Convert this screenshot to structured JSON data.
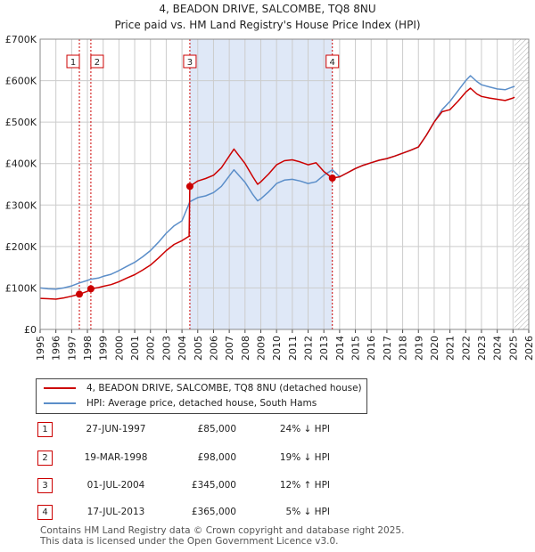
{
  "title_line1": "4, BEADON DRIVE, SALCOMBE, TQ8 8NU",
  "title_line2": "Price paid vs. HM Land Registry's House Price Index (HPI)",
  "colors": {
    "property": "#cc0000",
    "hpi": "#5b8ec9",
    "shade": "#dfe8f7",
    "grid": "#cccccc",
    "marker_border": "#cc0000"
  },
  "legend": {
    "property_label": "4, BEADON DRIVE, SALCOMBE, TQ8 8NU (detached house)",
    "hpi_label": "HPI: Average price, detached house, South Hams"
  },
  "transactions": [
    {
      "num": "1",
      "date": "27-JUN-1997",
      "price": "£85,000",
      "hpi": "24% ↓ HPI"
    },
    {
      "num": "2",
      "date": "19-MAR-1998",
      "price": "£98,000",
      "hpi": "19% ↓ HPI"
    },
    {
      "num": "3",
      "date": "01-JUL-2004",
      "price": "£345,000",
      "hpi": "12% ↑ HPI"
    },
    {
      "num": "4",
      "date": "17-JUL-2013",
      "price": "£365,000",
      "hpi": "5% ↓ HPI"
    }
  ],
  "footer": {
    "line1": "Contains HM Land Registry data © Crown copyright and database right 2025.",
    "line2": "This data is licensed under the Open Government Licence v3.0."
  },
  "chart_data": {
    "type": "line",
    "x_range": [
      1995,
      2026
    ],
    "ylim": [
      0,
      700000
    ],
    "y_ticks": [
      {
        "value": 0,
        "label": "£0"
      },
      {
        "value": 100000,
        "label": "£100K"
      },
      {
        "value": 200000,
        "label": "£200K"
      },
      {
        "value": 300000,
        "label": "£300K"
      },
      {
        "value": 400000,
        "label": "£400K"
      },
      {
        "value": 500000,
        "label": "£500K"
      },
      {
        "value": 600000,
        "label": "£600K"
      },
      {
        "value": 700000,
        "label": "£700K"
      }
    ],
    "x_ticks": [
      "1995",
      "1996",
      "1997",
      "1998",
      "1999",
      "2000",
      "2001",
      "2002",
      "2003",
      "2004",
      "2005",
      "2006",
      "2007",
      "2008",
      "2009",
      "2010",
      "2011",
      "2012",
      "2013",
      "2014",
      "2015",
      "2016",
      "2017",
      "2018",
      "2019",
      "2020",
      "2021",
      "2022",
      "2023",
      "2024",
      "2025",
      "2026"
    ],
    "shaded_region": [
      2004.5,
      2013.54
    ],
    "projection_start": 2025.1,
    "sales": [
      {
        "label": "1",
        "x": 1997.49,
        "y": 85000
      },
      {
        "label": "2",
        "x": 1998.22,
        "y": 98000
      },
      {
        "label": "3",
        "x": 2004.5,
        "y": 345000
      },
      {
        "label": "4",
        "x": 2013.54,
        "y": 365000
      }
    ],
    "series": [
      {
        "name": "HPI: Average price, detached house, South Hams",
        "points": [
          [
            1995,
            100000
          ],
          [
            1995.5,
            98000
          ],
          [
            1996,
            97000
          ],
          [
            1996.5,
            100000
          ],
          [
            1997,
            105000
          ],
          [
            1997.49,
            112000
          ],
          [
            1998,
            118000
          ],
          [
            1998.22,
            121000
          ],
          [
            1998.7,
            124000
          ],
          [
            1999,
            128000
          ],
          [
            1999.5,
            133000
          ],
          [
            2000,
            142000
          ],
          [
            2000.5,
            152000
          ],
          [
            2001,
            162000
          ],
          [
            2001.5,
            175000
          ],
          [
            2002,
            190000
          ],
          [
            2002.5,
            210000
          ],
          [
            2003,
            232000
          ],
          [
            2003.5,
            250000
          ],
          [
            2004,
            262000
          ],
          [
            2004.5,
            308000
          ],
          [
            2005,
            318000
          ],
          [
            2005.5,
            322000
          ],
          [
            2006,
            330000
          ],
          [
            2006.5,
            345000
          ],
          [
            2007,
            370000
          ],
          [
            2007.3,
            385000
          ],
          [
            2007.6,
            372000
          ],
          [
            2008,
            355000
          ],
          [
            2008.5,
            325000
          ],
          [
            2008.8,
            310000
          ],
          [
            2009,
            315000
          ],
          [
            2009.5,
            332000
          ],
          [
            2010,
            352000
          ],
          [
            2010.5,
            360000
          ],
          [
            2011,
            362000
          ],
          [
            2011.5,
            358000
          ],
          [
            2012,
            352000
          ],
          [
            2012.5,
            356000
          ],
          [
            2013,
            372000
          ],
          [
            2013.54,
            385000
          ],
          [
            2014,
            368000
          ],
          [
            2014.5,
            378000
          ],
          [
            2015,
            388000
          ],
          [
            2015.5,
            396000
          ],
          [
            2016,
            402000
          ],
          [
            2016.5,
            408000
          ],
          [
            2017,
            412000
          ],
          [
            2017.5,
            418000
          ],
          [
            2018,
            425000
          ],
          [
            2018.5,
            432000
          ],
          [
            2019,
            440000
          ],
          [
            2019.5,
            468000
          ],
          [
            2020,
            500000
          ],
          [
            2020.5,
            530000
          ],
          [
            2021,
            550000
          ],
          [
            2021.5,
            575000
          ],
          [
            2022,
            600000
          ],
          [
            2022.3,
            612000
          ],
          [
            2022.7,
            598000
          ],
          [
            2023,
            590000
          ],
          [
            2023.5,
            585000
          ],
          [
            2024,
            580000
          ],
          [
            2024.5,
            578000
          ],
          [
            2025,
            585000
          ],
          [
            2025.1,
            586000
          ]
        ]
      },
      {
        "name": "4, BEADON DRIVE, SALCOMBE, TQ8 8NU (detached house)",
        "points": [
          [
            1995,
            75000
          ],
          [
            1995.5,
            74000
          ],
          [
            1996,
            73000
          ],
          [
            1996.5,
            76000
          ],
          [
            1997,
            80000
          ],
          [
            1997.49,
            85000
          ],
          [
            1998,
            92000
          ],
          [
            1998.22,
            98000
          ],
          [
            1998.7,
            101000
          ],
          [
            1999,
            104000
          ],
          [
            1999.5,
            108000
          ],
          [
            2000,
            115000
          ],
          [
            2000.5,
            124000
          ],
          [
            2001,
            132000
          ],
          [
            2001.5,
            143000
          ],
          [
            2002,
            155000
          ],
          [
            2002.5,
            172000
          ],
          [
            2003,
            190000
          ],
          [
            2003.5,
            205000
          ],
          [
            2004,
            214000
          ],
          [
            2004.45,
            225000
          ],
          [
            2004.5,
            345000
          ],
          [
            2005,
            358000
          ],
          [
            2005.5,
            364000
          ],
          [
            2006,
            372000
          ],
          [
            2006.5,
            390000
          ],
          [
            2007,
            418000
          ],
          [
            2007.3,
            435000
          ],
          [
            2007.6,
            420000
          ],
          [
            2008,
            400000
          ],
          [
            2008.5,
            368000
          ],
          [
            2008.8,
            350000
          ],
          [
            2009,
            356000
          ],
          [
            2009.5,
            375000
          ],
          [
            2010,
            397000
          ],
          [
            2010.5,
            407000
          ],
          [
            2011,
            409000
          ],
          [
            2011.5,
            404000
          ],
          [
            2012,
            397000
          ],
          [
            2012.5,
            402000
          ],
          [
            2013,
            381000
          ],
          [
            2013.54,
            365000
          ],
          [
            2014,
            368000
          ],
          [
            2014.5,
            378000
          ],
          [
            2015,
            388000
          ],
          [
            2015.5,
            396000
          ],
          [
            2016,
            402000
          ],
          [
            2016.5,
            408000
          ],
          [
            2017,
            412000
          ],
          [
            2017.5,
            418000
          ],
          [
            2018,
            425000
          ],
          [
            2018.5,
            432000
          ],
          [
            2019,
            440000
          ],
          [
            2019.5,
            468000
          ],
          [
            2020,
            500000
          ],
          [
            2020.5,
            525000
          ],
          [
            2021,
            530000
          ],
          [
            2021.5,
            550000
          ],
          [
            2022,
            572000
          ],
          [
            2022.3,
            582000
          ],
          [
            2022.7,
            568000
          ],
          [
            2023,
            562000
          ],
          [
            2023.5,
            558000
          ],
          [
            2024,
            555000
          ],
          [
            2024.5,
            552000
          ],
          [
            2025,
            558000
          ],
          [
            2025.1,
            560000
          ]
        ]
      }
    ]
  }
}
